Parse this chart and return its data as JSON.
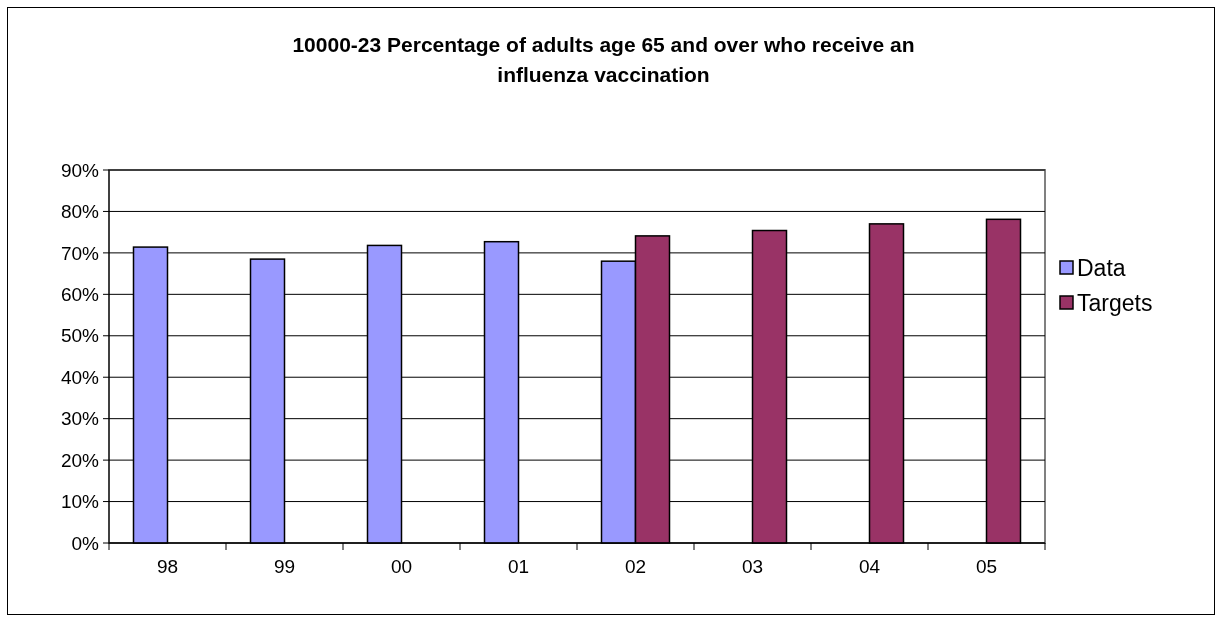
{
  "chart_data": {
    "type": "bar",
    "title": "10000-23  Percentage of adults age 65 and over who receive an influenza vaccination",
    "categories": [
      "98",
      "99",
      "00",
      "01",
      "02",
      "03",
      "04",
      "05"
    ],
    "series": [
      {
        "name": "Data",
        "color": "#9999ff",
        "values": [
          71.4,
          68.5,
          71.8,
          72.7,
          68.0,
          null,
          null,
          null
        ]
      },
      {
        "name": "Targets",
        "color": "#993366",
        "values": [
          null,
          null,
          null,
          null,
          74.1,
          75.4,
          77.0,
          78.1
        ]
      }
    ],
    "ylim": [
      0,
      90
    ],
    "yticks": [
      {
        "value": 0,
        "label": "0%"
      },
      {
        "value": 10,
        "label": "10%"
      },
      {
        "value": 20,
        "label": "20%"
      },
      {
        "value": 30,
        "label": "30%"
      },
      {
        "value": 40,
        "label": "40%"
      },
      {
        "value": 50,
        "label": "50%"
      },
      {
        "value": 60,
        "label": "60%"
      },
      {
        "value": 70,
        "label": "70%"
      },
      {
        "value": 80,
        "label": "80%"
      },
      {
        "value": 90,
        "label": "90%"
      }
    ],
    "grid": "y",
    "legend": "right"
  }
}
